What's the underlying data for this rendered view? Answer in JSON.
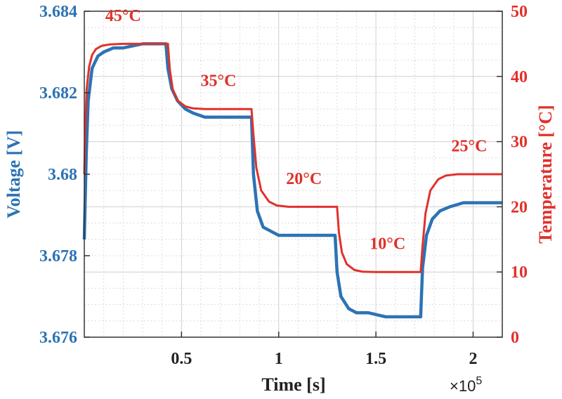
{
  "chart_data": {
    "type": "line",
    "xlabel": "Time [s]",
    "x_multiplier_label": "×10",
    "x_multiplier_exponent": "5",
    "x_ticks": [
      {
        "value": 0.5,
        "label": "0.5"
      },
      {
        "value": 1.0,
        "label": "1"
      },
      {
        "value": 1.5,
        "label": "1.5"
      },
      {
        "value": 2.0,
        "label": "2"
      }
    ],
    "xlim": [
      0,
      2.15
    ],
    "grid": true,
    "left_axis": {
      "label": "Voltage [V]",
      "color": "#2c73b4",
      "ylim": [
        3.676,
        3.684
      ],
      "ticks": [
        {
          "value": 3.676,
          "label": "3.676"
        },
        {
          "value": 3.678,
          "label": "3.678"
        },
        {
          "value": 3.68,
          "label": "3.68"
        },
        {
          "value": 3.682,
          "label": "3.682"
        },
        {
          "value": 3.684,
          "label": "3.684"
        }
      ]
    },
    "right_axis": {
      "label": "Temperature [°C]",
      "color": "#e0312b",
      "ylim": [
        0,
        50
      ],
      "ticks": [
        {
          "value": 0,
          "label": "0"
        },
        {
          "value": 10,
          "label": "10"
        },
        {
          "value": 20,
          "label": "20"
        },
        {
          "value": 30,
          "label": "30"
        },
        {
          "value": 40,
          "label": "40"
        },
        {
          "value": 50,
          "label": "50"
        }
      ]
    },
    "series": [
      {
        "axis": "left",
        "color": "#2c73b4",
        "x": [
          0,
          0.01,
          0.02,
          0.04,
          0.07,
          0.1,
          0.15,
          0.2,
          0.3,
          0.42,
          0.43,
          0.45,
          0.48,
          0.52,
          0.56,
          0.62,
          0.7,
          0.8,
          0.86,
          0.87,
          0.89,
          0.92,
          0.96,
          1.0,
          1.1,
          1.2,
          1.29,
          1.3,
          1.32,
          1.36,
          1.4,
          1.46,
          1.55,
          1.65,
          1.73,
          1.74,
          1.76,
          1.79,
          1.83,
          1.88,
          1.95,
          2.05,
          2.15
        ],
        "y": [
          3.6784,
          3.6805,
          3.6818,
          3.6826,
          3.6829,
          3.683,
          3.6831,
          3.6831,
          3.6832,
          3.6832,
          3.6826,
          3.6821,
          3.6818,
          3.6816,
          3.6815,
          3.6814,
          3.6814,
          3.6814,
          3.6814,
          3.68,
          3.6791,
          3.6787,
          3.6786,
          3.6785,
          3.6785,
          3.6785,
          3.6785,
          3.6776,
          3.677,
          3.6767,
          3.6766,
          3.6766,
          3.6765,
          3.6765,
          3.6765,
          3.6777,
          3.6785,
          3.6789,
          3.6791,
          3.6792,
          3.6793,
          3.6793,
          3.6793
        ]
      },
      {
        "axis": "right",
        "color": "#e0312b",
        "x": [
          0,
          0.005,
          0.012,
          0.025,
          0.04,
          0.06,
          0.09,
          0.13,
          0.2,
          0.3,
          0.43,
          0.44,
          0.455,
          0.48,
          0.52,
          0.56,
          0.62,
          0.7,
          0.86,
          0.87,
          0.885,
          0.91,
          0.95,
          0.99,
          1.05,
          1.15,
          1.3,
          1.31,
          1.325,
          1.35,
          1.39,
          1.43,
          1.5,
          1.6,
          1.73,
          1.74,
          1.755,
          1.78,
          1.82,
          1.86,
          1.92,
          2.0,
          2.15
        ],
        "y": [
          25,
          32,
          38,
          41.5,
          43.3,
          44.2,
          44.7,
          44.9,
          45,
          45,
          45,
          41,
          38,
          36.3,
          35.4,
          35.1,
          35,
          35,
          35,
          31,
          26,
          22.5,
          20.8,
          20.2,
          20,
          20,
          20,
          16,
          13,
          11.2,
          10.3,
          10.05,
          10,
          10,
          10,
          14,
          19,
          22.5,
          24.2,
          24.8,
          25,
          25,
          25
        ]
      }
    ],
    "annotations": [
      {
        "text": "45°C",
        "x": 0.2,
        "axis": "right",
        "y": 48.5
      },
      {
        "text": "35°C",
        "x": 0.69,
        "axis": "right",
        "y": 38.5
      },
      {
        "text": "20°C",
        "x": 1.13,
        "axis": "right",
        "y": 23.5
      },
      {
        "text": "10°C",
        "x": 1.56,
        "axis": "right",
        "y": 13.5
      },
      {
        "text": "25°C",
        "x": 1.98,
        "axis": "right",
        "y": 28.5
      }
    ]
  }
}
